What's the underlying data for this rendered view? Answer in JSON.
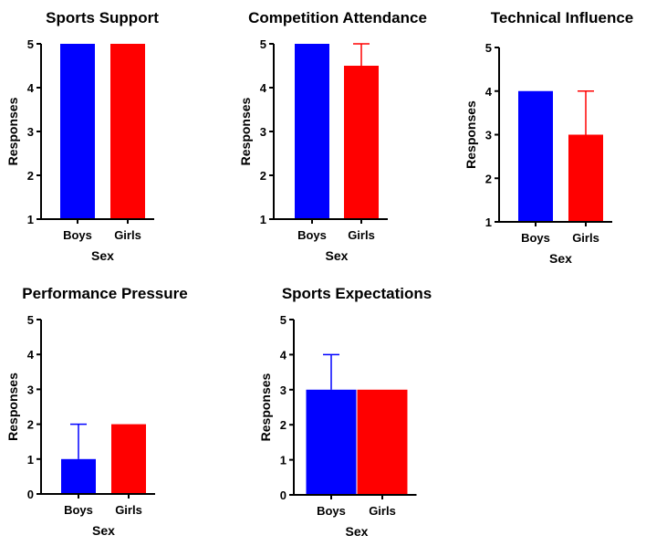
{
  "colors": {
    "boys": "#0000ff",
    "girls": "#ff0000",
    "axis": "#000000"
  },
  "chart_data": [
    {
      "type": "bar",
      "title": "Sports Support",
      "xlabel": "Sex",
      "ylabel": "Responses",
      "categories": [
        "Boys",
        "Girls"
      ],
      "values": [
        5,
        5
      ],
      "error_upper": [
        5,
        5
      ],
      "ylim": [
        1,
        5
      ],
      "yticks": [
        1,
        2,
        3,
        4,
        5
      ],
      "grid": false
    },
    {
      "type": "bar",
      "title": "Competition Attendance",
      "xlabel": "Sex",
      "ylabel": "Responses",
      "categories": [
        "Boys",
        "Girls"
      ],
      "values": [
        5,
        4.5
      ],
      "error_upper": [
        5,
        5
      ],
      "ylim": [
        1,
        5
      ],
      "yticks": [
        1,
        2,
        3,
        4,
        5
      ],
      "grid": false
    },
    {
      "type": "bar",
      "title": "Technical Influence",
      "xlabel": "Sex",
      "ylabel": "Responses",
      "categories": [
        "Boys",
        "Girls"
      ],
      "values": [
        4,
        3
      ],
      "error_upper": [
        4,
        4
      ],
      "ylim": [
        1,
        5
      ],
      "yticks": [
        1,
        2,
        3,
        4,
        5
      ],
      "grid": false
    },
    {
      "type": "bar",
      "title": "Performance Pressure",
      "xlabel": "Sex",
      "ylabel": "Responses",
      "categories": [
        "Boys",
        "Girls"
      ],
      "values": [
        1,
        2
      ],
      "error_upper": [
        2,
        2
      ],
      "ylim": [
        0,
        5
      ],
      "yticks": [
        0,
        1,
        2,
        3,
        4,
        5
      ],
      "grid": false
    },
    {
      "type": "bar",
      "title": "Sports Expectations",
      "xlabel": "Sex",
      "ylabel": "Responses",
      "categories": [
        "Boys",
        "Girls"
      ],
      "values": [
        3,
        3
      ],
      "error_upper": [
        4,
        3
      ],
      "ylim": [
        0,
        5
      ],
      "yticks": [
        0,
        1,
        2,
        3,
        4,
        5
      ],
      "grid": false
    }
  ]
}
